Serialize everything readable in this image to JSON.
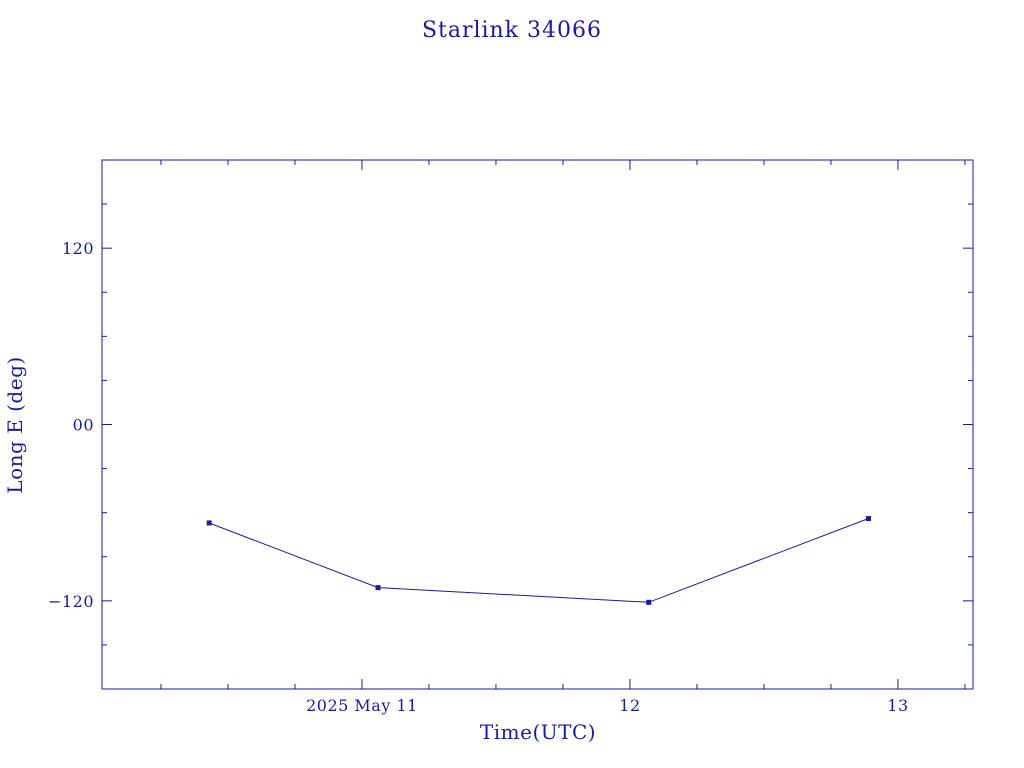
{
  "chart_data": {
    "type": "line",
    "title": "Starlink 34066",
    "xlabel": "Time(UTC)",
    "ylabel": "Long E (deg)",
    "x_tick_labels": [
      "2025 May 11",
      "12",
      "13"
    ],
    "y_tick_labels": [
      "120",
      "00",
      "−120"
    ],
    "x_ticks": [
      11,
      12,
      13
    ],
    "y_ticks": [
      120,
      0,
      -120
    ],
    "xlim": [
      10.03,
      13.28
    ],
    "ylim": [
      -180,
      180
    ],
    "x": [
      10.43,
      11.06,
      12.07,
      12.89
    ],
    "y": [
      -67,
      -111,
      -121,
      -64
    ],
    "grid": false,
    "color": "#1a1aa0"
  }
}
